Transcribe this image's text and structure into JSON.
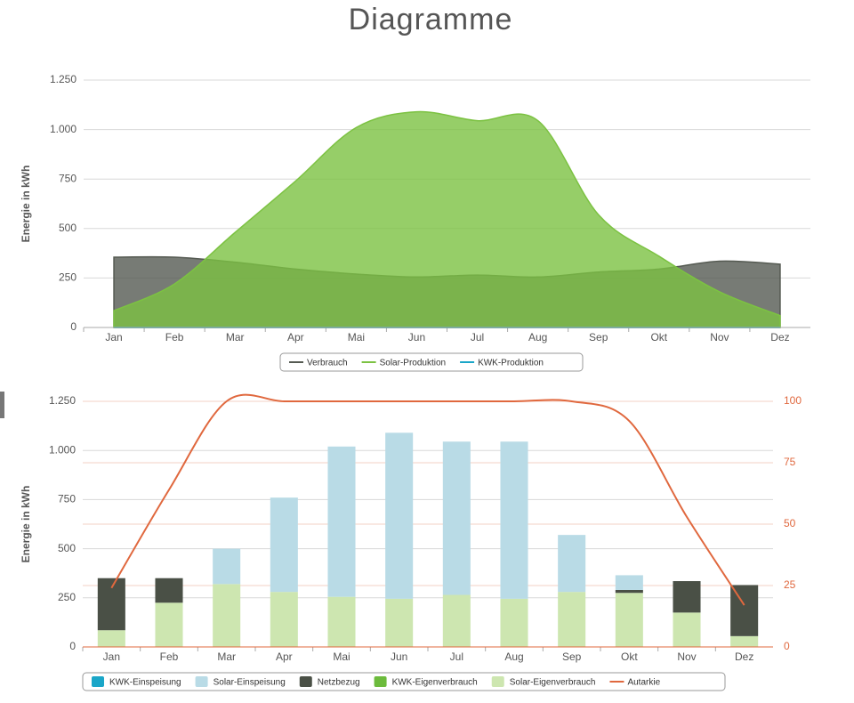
{
  "title": "Diagramme",
  "chart_data": [
    {
      "type": "area",
      "y_label": "Energie in kWh",
      "categories": [
        "Jan",
        "Feb",
        "Mar",
        "Apr",
        "Mai",
        "Jun",
        "Jul",
        "Aug",
        "Sep",
        "Okt",
        "Nov",
        "Dez"
      ],
      "ylim": [
        0,
        1250
      ],
      "yticks": [
        0,
        250,
        500,
        750,
        {
          "value": 1000,
          "label": "1.000"
        },
        {
          "value": 1250,
          "label": "1.250"
        }
      ],
      "grid": true,
      "series": [
        {
          "name": "Verbrauch",
          "color": "#555a52",
          "values": [
            355,
            355,
            330,
            295,
            270,
            255,
            265,
            255,
            280,
            295,
            335,
            320
          ]
        },
        {
          "name": "Solar-Produktion",
          "color": "#7cc242",
          "values": [
            85,
            220,
            480,
            740,
            1010,
            1090,
            1045,
            1045,
            570,
            360,
            180,
            60
          ]
        },
        {
          "name": "KWK-Produktion",
          "color": "#1aa6c8",
          "values": [
            0,
            0,
            0,
            0,
            0,
            0,
            0,
            0,
            0,
            0,
            0,
            0
          ]
        }
      ]
    },
    {
      "type": "bar",
      "stacked": true,
      "y_label": "Energie in kWh",
      "categories": [
        "Jan",
        "Feb",
        "Mar",
        "Apr",
        "Mai",
        "Jun",
        "Jul",
        "Aug",
        "Sep",
        "Okt",
        "Nov",
        "Dez"
      ],
      "ylim": [
        0,
        1250
      ],
      "yticks": [
        0,
        250,
        500,
        750,
        {
          "value": 1000,
          "label": "1.000"
        },
        {
          "value": 1250,
          "label": "1.250"
        }
      ],
      "y2lim": [
        0,
        100
      ],
      "y2ticks": [
        0,
        25,
        50,
        75,
        100
      ],
      "grid": true,
      "series": [
        {
          "name": "KWK-Einspeisung",
          "color": "#1aa6c8",
          "values": [
            0,
            0,
            0,
            0,
            0,
            0,
            0,
            0,
            0,
            0,
            0,
            0
          ]
        },
        {
          "name": "Solar-Einspeisung",
          "color": "#b9dbe6",
          "values": [
            0,
            0,
            180,
            480,
            765,
            845,
            780,
            800,
            290,
            75,
            0,
            0
          ]
        },
        {
          "name": "Netzbezug",
          "color": "#4a5046",
          "values": [
            265,
            125,
            0,
            0,
            0,
            0,
            0,
            0,
            0,
            15,
            160,
            260
          ]
        },
        {
          "name": "KWK-Eigenverbrauch",
          "color": "#6cbb3c",
          "values": [
            0,
            0,
            0,
            0,
            0,
            0,
            0,
            0,
            0,
            0,
            0,
            0
          ]
        },
        {
          "name": "Solar-Eigenverbrauch",
          "color": "#cde6b0",
          "values": [
            85,
            225,
            320,
            280,
            255,
            245,
            265,
            245,
            280,
            275,
            175,
            55
          ]
        },
        {
          "name": "Autarkie",
          "type": "line",
          "axis": "y2",
          "color": "#e0683e",
          "values": [
            24,
            64,
            100,
            100,
            100,
            100,
            100,
            100,
            100,
            92,
            53,
            17
          ]
        }
      ]
    }
  ]
}
